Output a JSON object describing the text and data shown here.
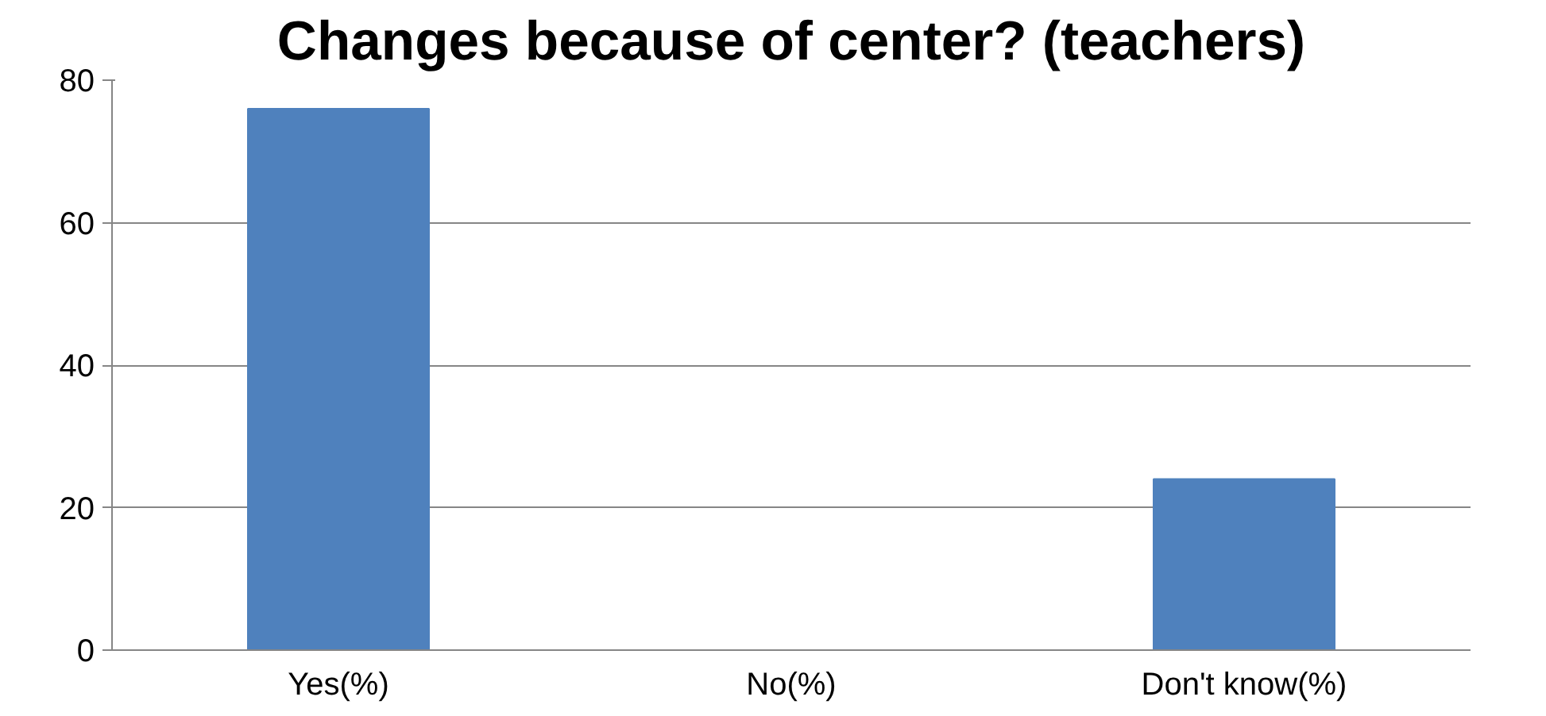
{
  "chart_data": {
    "type": "bar",
    "title": "Changes because of center? (teachers)",
    "categories": [
      "Yes(%)",
      "No(%)",
      "Don't know(%)"
    ],
    "values": [
      76,
      0,
      24
    ],
    "color": "#4f81bd",
    "ylim": [
      0,
      80
    ],
    "yticks": [
      0,
      20,
      40,
      60,
      80
    ],
    "grid": "y"
  }
}
